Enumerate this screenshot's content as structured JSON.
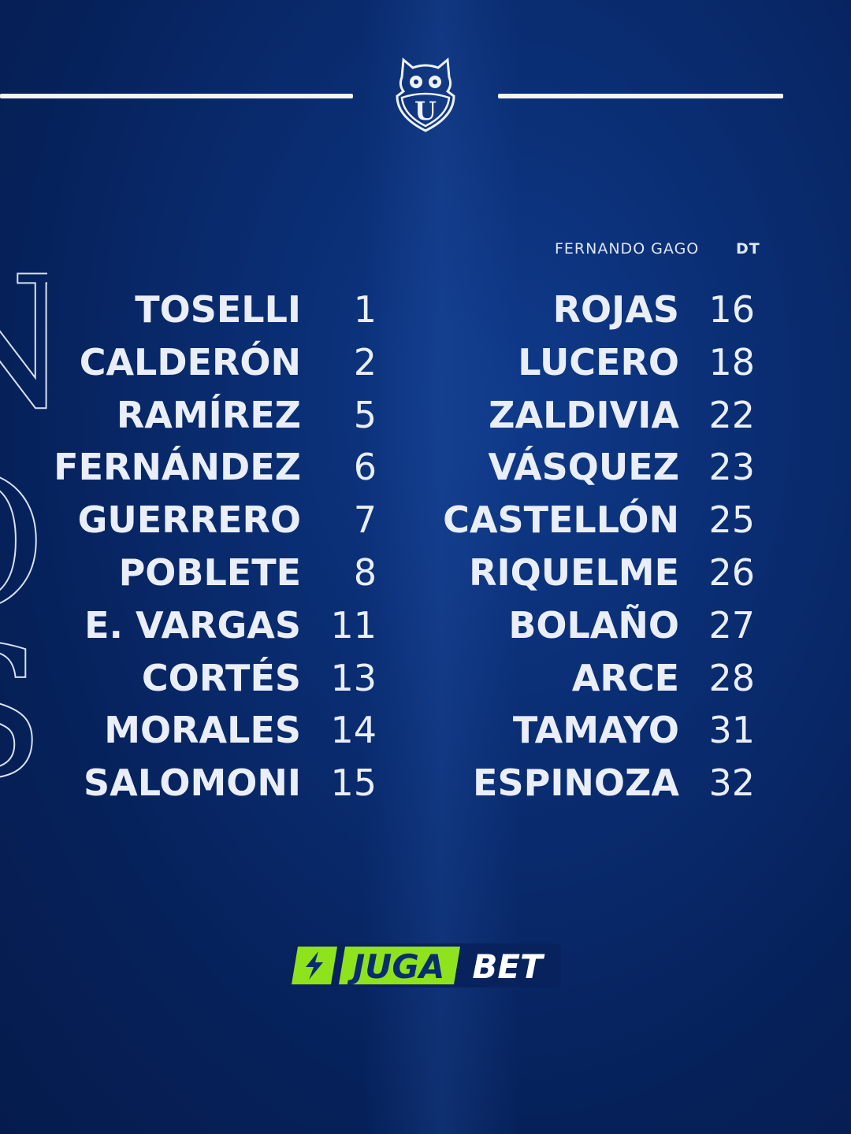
{
  "coach": {
    "name": "FERNANDO GAGO",
    "role": "DT"
  },
  "left_column": [
    {
      "name": "TOSELLI",
      "number": "1"
    },
    {
      "name": "CALDERÓN",
      "number": "2"
    },
    {
      "name": "RAMÍREZ",
      "number": "5"
    },
    {
      "name": "FERNÁNDEZ",
      "number": "6"
    },
    {
      "name": "GUERRERO",
      "number": "7"
    },
    {
      "name": "POBLETE",
      "number": "8"
    },
    {
      "name": "E. VARGAS",
      "number": "11"
    },
    {
      "name": "CORTÉS",
      "number": "13"
    },
    {
      "name": "MORALES",
      "number": "14"
    },
    {
      "name": "SALOMONI",
      "number": "15"
    }
  ],
  "right_column": [
    {
      "name": "ROJAS",
      "number": "16"
    },
    {
      "name": "LUCERO",
      "number": "18"
    },
    {
      "name": "ZALDIVIA",
      "number": "22"
    },
    {
      "name": "VÁSQUEZ",
      "number": "23"
    },
    {
      "name": "CASTELLÓN",
      "number": "25"
    },
    {
      "name": "RIQUELME",
      "number": "26"
    },
    {
      "name": "BOLAÑO",
      "number": "27"
    },
    {
      "name": "ARCE",
      "number": "28"
    },
    {
      "name": "TAMAYO",
      "number": "31"
    },
    {
      "name": "ESPINOZA",
      "number": "32"
    }
  ],
  "crest": {
    "letter": "U"
  },
  "sponsor": {
    "part1": "JUGA",
    "part2": "BET",
    "accent": "#8fe31c",
    "icon": "lightning-bolt-icon"
  },
  "colors": {
    "background": "#0a2d72",
    "text": "#e9eef8"
  }
}
